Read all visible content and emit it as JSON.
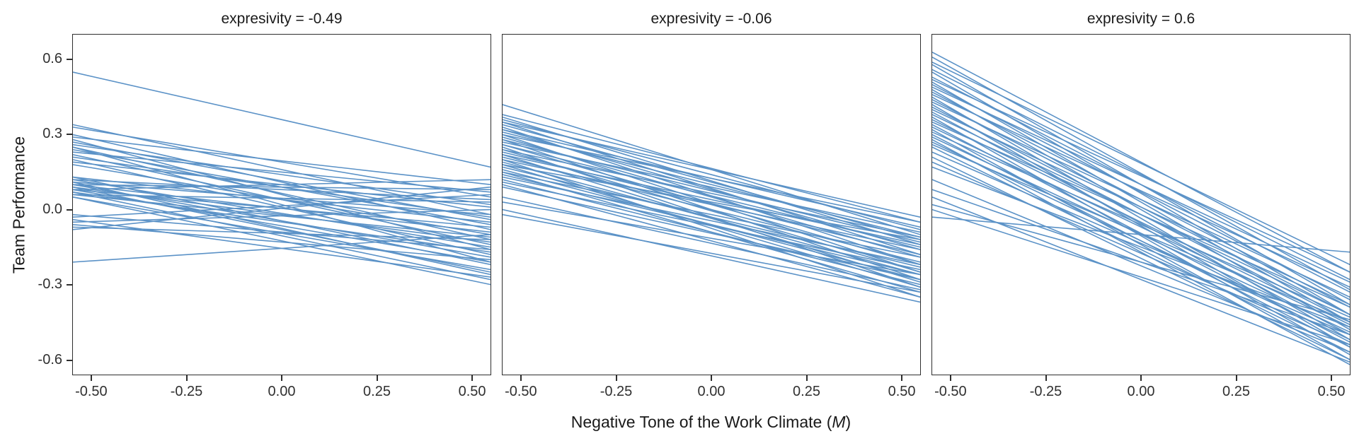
{
  "figure": {
    "y_axis_title": "Team Performance",
    "x_axis_title_prefix": "Negative Tone of the Work Climate (",
    "x_axis_title_italic": "M",
    "x_axis_title_suffix": ")"
  },
  "chart_data": {
    "type": "line",
    "title": "",
    "xlabel": "Negative Tone of the Work Climate (M)",
    "ylabel": "Team Performance",
    "xlim": [
      -0.55,
      0.55
    ],
    "ylim": [
      -0.66,
      0.7
    ],
    "x_tick_values": [
      -0.5,
      -0.25,
      0.0,
      0.25,
      0.5
    ],
    "x_tick_labels": [
      "-0.50",
      "-0.25",
      "0.00",
      "0.25",
      "0.50"
    ],
    "y_tick_values": [
      0.6,
      0.3,
      0.0,
      -0.3,
      -0.6
    ],
    "y_tick_labels": [
      "0.6",
      "0.3",
      "0.0",
      "-0.3",
      "-0.6"
    ],
    "grid": "off",
    "legend": "none",
    "line_color": "#5b92c7",
    "line_width": 1.6,
    "line_x_span": [
      -0.55,
      0.55
    ],
    "panels": [
      {
        "title": "expresivity = -0.49",
        "lines": [
          [
            0.55,
            0.17
          ],
          [
            0.34,
            -0.02
          ],
          [
            0.33,
            0.05
          ],
          [
            0.3,
            -0.08
          ],
          [
            0.29,
            0.1
          ],
          [
            0.28,
            -0.16
          ],
          [
            0.27,
            -0.04
          ],
          [
            0.26,
            0.02
          ],
          [
            0.25,
            -0.12
          ],
          [
            0.25,
            -0.21
          ],
          [
            0.24,
            -0.06
          ],
          [
            0.23,
            0.07
          ],
          [
            0.22,
            -0.14
          ],
          [
            0.21,
            -0.03
          ],
          [
            0.2,
            -0.18
          ],
          [
            0.19,
            0.01
          ],
          [
            0.18,
            -0.1
          ],
          [
            0.13,
            -0.22
          ],
          [
            0.13,
            -0.05
          ],
          [
            0.12,
            0.04
          ],
          [
            0.12,
            -0.15
          ],
          [
            0.11,
            -0.26
          ],
          [
            0.11,
            -0.02
          ],
          [
            0.1,
            -0.19
          ],
          [
            0.1,
            0.08
          ],
          [
            0.1,
            -0.09
          ],
          [
            0.09,
            -0.25
          ],
          [
            0.09,
            -0.13
          ],
          [
            0.08,
            0.12
          ],
          [
            0.08,
            -0.21
          ],
          [
            0.08,
            -0.07
          ],
          [
            0.07,
            -0.17
          ],
          [
            0.07,
            -0.28
          ],
          [
            0.06,
            -0.11
          ],
          [
            0.06,
            0.03
          ],
          [
            0.05,
            -0.24
          ],
          [
            0.05,
            -0.3
          ],
          [
            -0.02,
            -0.16
          ],
          [
            -0.03,
            0.06
          ],
          [
            -0.04,
            -0.27
          ],
          [
            -0.05,
            0.0
          ],
          [
            -0.06,
            -0.2
          ],
          [
            -0.07,
            -0.12
          ],
          [
            -0.08,
            0.09
          ],
          [
            -0.21,
            -0.1
          ]
        ]
      },
      {
        "title": "expresivity = -0.06",
        "lines": [
          [
            0.42,
            -0.1
          ],
          [
            0.38,
            -0.05
          ],
          [
            0.37,
            -0.14
          ],
          [
            0.36,
            -0.08
          ],
          [
            0.35,
            -0.18
          ],
          [
            0.35,
            -0.03
          ],
          [
            0.34,
            -0.12
          ],
          [
            0.33,
            -0.22
          ],
          [
            0.32,
            -0.07
          ],
          [
            0.32,
            -0.16
          ],
          [
            0.31,
            -0.11
          ],
          [
            0.3,
            -0.25
          ],
          [
            0.3,
            -0.05
          ],
          [
            0.29,
            -0.19
          ],
          [
            0.28,
            -0.13
          ],
          [
            0.28,
            -0.28
          ],
          [
            0.27,
            -0.09
          ],
          [
            0.26,
            -0.22
          ],
          [
            0.26,
            -0.15
          ],
          [
            0.25,
            -0.31
          ],
          [
            0.24,
            -0.11
          ],
          [
            0.24,
            -0.25
          ],
          [
            0.23,
            -0.18
          ],
          [
            0.22,
            -0.14
          ],
          [
            0.22,
            -0.29
          ],
          [
            0.21,
            -0.21
          ],
          [
            0.2,
            -0.35
          ],
          [
            0.2,
            -0.16
          ],
          [
            0.19,
            -0.26
          ],
          [
            0.18,
            -0.31
          ],
          [
            0.18,
            -0.12
          ],
          [
            0.17,
            -0.23
          ],
          [
            0.16,
            -0.28
          ],
          [
            0.15,
            -0.19
          ],
          [
            0.15,
            -0.33
          ],
          [
            0.14,
            -0.26
          ],
          [
            0.13,
            -0.22
          ],
          [
            0.12,
            -0.3
          ],
          [
            0.11,
            -0.24
          ],
          [
            0.1,
            -0.35
          ],
          [
            0.09,
            -0.28
          ],
          [
            0.05,
            -0.32
          ],
          [
            0.03,
            -0.26
          ],
          [
            0.0,
            -0.37
          ],
          [
            -0.02,
            -0.33
          ]
        ]
      },
      {
        "title": "expresivity = 0.6",
        "lines": [
          [
            0.63,
            -0.25
          ],
          [
            0.61,
            -0.32
          ],
          [
            0.59,
            -0.22
          ],
          [
            0.58,
            -0.38
          ],
          [
            0.56,
            -0.28
          ],
          [
            0.55,
            -0.42
          ],
          [
            0.53,
            -0.33
          ],
          [
            0.52,
            -0.25
          ],
          [
            0.51,
            -0.45
          ],
          [
            0.5,
            -0.36
          ],
          [
            0.49,
            -0.29
          ],
          [
            0.48,
            -0.48
          ],
          [
            0.47,
            -0.39
          ],
          [
            0.46,
            -0.31
          ],
          [
            0.45,
            -0.52
          ],
          [
            0.44,
            -0.42
          ],
          [
            0.43,
            -0.35
          ],
          [
            0.42,
            -0.55
          ],
          [
            0.41,
            -0.45
          ],
          [
            0.4,
            -0.38
          ],
          [
            0.39,
            -0.5
          ],
          [
            0.38,
            -0.42
          ],
          [
            0.37,
            -0.58
          ],
          [
            0.36,
            -0.46
          ],
          [
            0.35,
            -0.39
          ],
          [
            0.34,
            -0.53
          ],
          [
            0.33,
            -0.47
          ],
          [
            0.32,
            -0.6
          ],
          [
            0.31,
            -0.43
          ],
          [
            0.3,
            -0.55
          ],
          [
            0.29,
            -0.49
          ],
          [
            0.28,
            -0.62
          ],
          [
            0.27,
            -0.52
          ],
          [
            0.26,
            -0.45
          ],
          [
            0.25,
            -0.57
          ],
          [
            0.23,
            -0.5
          ],
          [
            0.21,
            -0.6
          ],
          [
            0.19,
            -0.54
          ],
          [
            0.17,
            -0.47
          ],
          [
            0.12,
            -0.57
          ],
          [
            0.08,
            -0.5
          ],
          [
            0.05,
            -0.61
          ],
          [
            0.02,
            -0.44
          ],
          [
            0.0,
            -0.54
          ],
          [
            -0.03,
            -0.17
          ]
        ]
      }
    ]
  }
}
